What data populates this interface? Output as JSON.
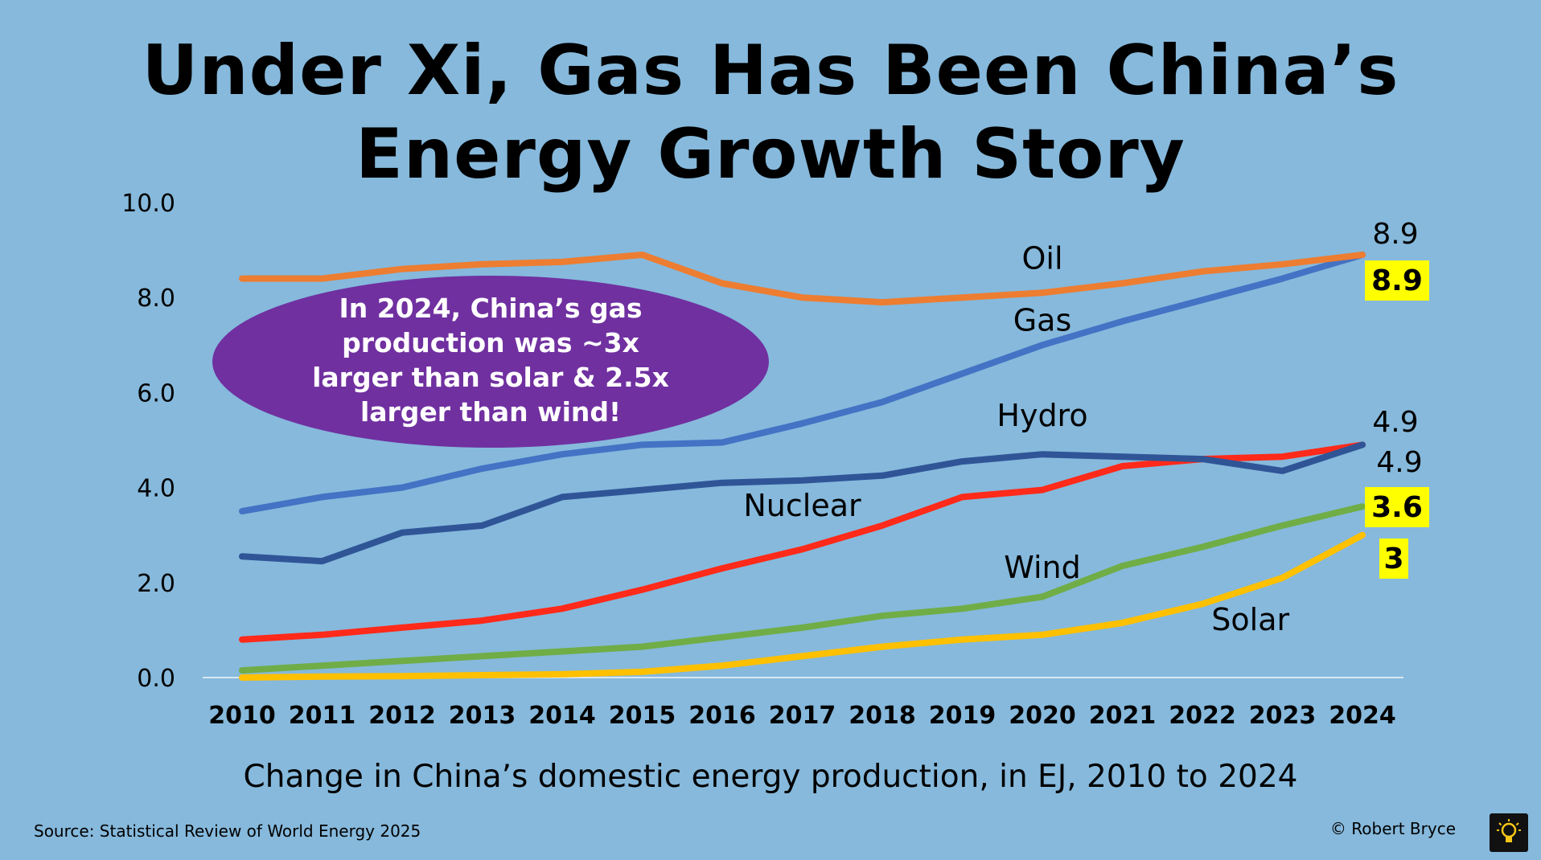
{
  "title": {
    "line1": "Under Xi, Gas Has Been China’s",
    "line2": "Energy Growth Story"
  },
  "subtitle": "Change in China’s domestic energy production, in EJ, 2010 to 2024",
  "source": "Source: Statistical Review of World Energy 2025",
  "copyright": "© Robert Bryce",
  "logo_icon": "lightbulb-icon",
  "callout": {
    "lines": [
      "In 2024, China’s gas",
      "production was ~3x",
      "larger than solar & 2.5x",
      "larger than wind!"
    ],
    "color": "#7030a0"
  },
  "chart_data": {
    "type": "line",
    "title": "Under Xi, Gas Has Been China’s Energy Growth Story",
    "xlabel": "Change in China’s domestic energy production, in EJ, 2010 to 2024",
    "ylabel": "",
    "ylim": [
      0,
      10
    ],
    "y_ticks": [
      "0.0",
      "2.0",
      "4.0",
      "6.0",
      "8.0",
      "10.0"
    ],
    "grid": false,
    "categories": [
      "2010",
      "2011",
      "2012",
      "2013",
      "2014",
      "2015",
      "2016",
      "2017",
      "2018",
      "2019",
      "2020",
      "2021",
      "2022",
      "2023",
      "2024"
    ],
    "series": [
      {
        "name": "Oil",
        "color": "#ed7d31",
        "values": [
          8.4,
          8.4,
          8.6,
          8.7,
          8.75,
          8.9,
          8.3,
          8.0,
          7.9,
          8.0,
          8.1,
          8.3,
          8.55,
          8.7,
          8.9
        ],
        "end_label": "8.9",
        "end_highlight": false
      },
      {
        "name": "Gas",
        "color": "#4472c4",
        "values": [
          3.5,
          3.8,
          4.0,
          4.4,
          4.7,
          4.9,
          4.95,
          5.35,
          5.8,
          6.4,
          7.0,
          7.5,
          7.95,
          8.4,
          8.9
        ],
        "end_label": "8.9",
        "end_highlight": true
      },
      {
        "name": "Hydro",
        "color": "#2f5597",
        "values": [
          2.55,
          2.45,
          3.05,
          3.2,
          3.8,
          3.95,
          4.1,
          4.15,
          4.25,
          4.55,
          4.7,
          4.65,
          4.6,
          4.35,
          4.9
        ],
        "end_label": "4.9",
        "end_highlight": false
      },
      {
        "name": "Nuclear",
        "color": "#ff2a1a",
        "values": [
          0.8,
          0.9,
          1.05,
          1.2,
          1.45,
          1.85,
          2.3,
          2.7,
          3.2,
          3.8,
          3.95,
          4.45,
          4.6,
          4.65,
          4.9
        ],
        "end_label": "4.9",
        "end_highlight": false
      },
      {
        "name": "Wind",
        "color": "#70ad47",
        "values": [
          0.15,
          0.25,
          0.35,
          0.45,
          0.55,
          0.65,
          0.85,
          1.05,
          1.3,
          1.45,
          1.7,
          2.35,
          2.75,
          3.2,
          3.6
        ],
        "end_label": "3.6",
        "end_highlight": true
      },
      {
        "name": "Solar",
        "color": "#ffc000",
        "values": [
          0.0,
          0.02,
          0.03,
          0.05,
          0.07,
          0.12,
          0.25,
          0.45,
          0.65,
          0.8,
          0.9,
          1.15,
          1.55,
          2.1,
          3.0
        ],
        "end_label": "3",
        "end_highlight": true
      }
    ],
    "series_label_anchors": [
      {
        "name": "Oil",
        "at_x": "2020",
        "at_y": 8.6
      },
      {
        "name": "Gas",
        "at_x": "2020",
        "at_y": 7.3
      },
      {
        "name": "Hydro",
        "at_x": "2020",
        "at_y": 5.3
      },
      {
        "name": "Nuclear",
        "at_x": "2017",
        "at_y": 3.4
      },
      {
        "name": "Wind",
        "at_x": "2020",
        "at_y": 2.1
      },
      {
        "name": "Solar",
        "at_x": "2022.6",
        "at_y": 1.0
      }
    ]
  }
}
